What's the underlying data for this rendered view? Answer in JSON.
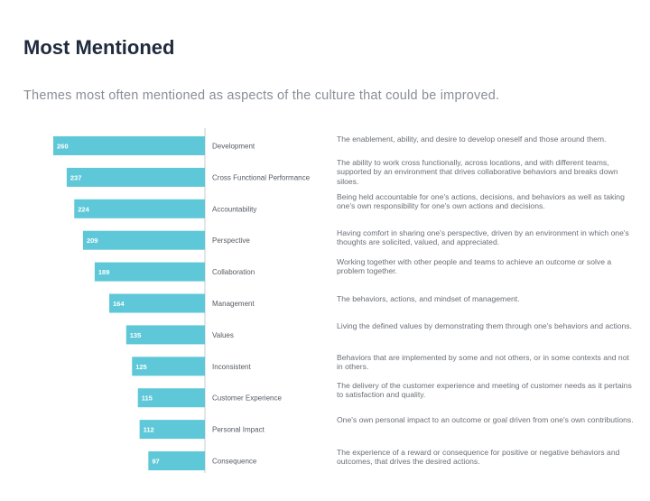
{
  "title": "Most Mentioned",
  "subtitle": "Themes most often mentioned as aspects of the culture that could be improved.",
  "colors": {
    "bar": "#5ec8d8",
    "axis": "#c8ccd1"
  },
  "chart_data": {
    "type": "bar",
    "orientation": "horizontal",
    "categories": [
      "Development",
      "Cross Functional Performance",
      "Accountability",
      "Perspective",
      "Collaboration",
      "Management",
      "Values",
      "Inconsistent",
      "Customer Experience",
      "Personal Impact",
      "Consequence"
    ],
    "values": [
      260,
      237,
      224,
      209,
      189,
      164,
      135,
      125,
      115,
      112,
      97
    ],
    "xlim": [
      0,
      260
    ]
  },
  "descriptions": [
    "The enablement, ability, and desire to develop oneself and those around them.",
    "The ability to work cross functionally, across locations, and with different teams, supported by an environment that drives collaborative behaviors and breaks down siloes.",
    "Being held accountable for one's actions, decisions, and behaviors as well as taking one's own responsibility for one's own actions and decisions.",
    "Having comfort in sharing one's perspective, driven by an environment in which one's thoughts are solicited, valued, and appreciated.",
    "Working together with other people and teams to achieve an outcome or solve a problem together.",
    "The behaviors, actions, and mindset of management.",
    "Living the defined values by demonstrating them through one's behaviors and actions.",
    "Behaviors that are implemented by some and not others, or in some contexts and not in others.",
    "The delivery of the customer experience and meeting of customer needs as it pertains to satisfaction and quality.",
    "One's own personal impact to an outcome or goal driven from one's own contributions.",
    "The experience of a reward or consequence for positive or negative behaviors and outcomes, that drives the desired actions."
  ]
}
